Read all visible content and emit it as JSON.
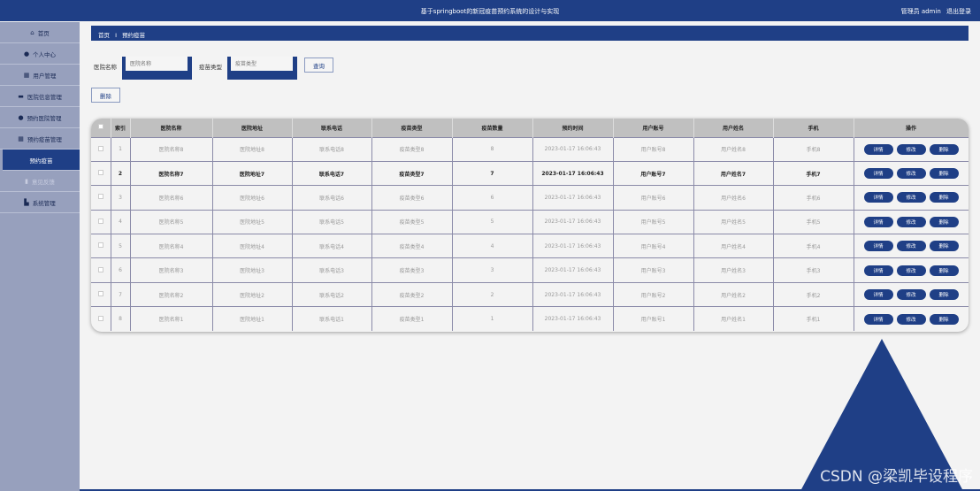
{
  "header": {
    "title": "基于springboot的新冠疫苗预约系统的设计与实现",
    "role": "管理员 admin",
    "logout": "退出登录"
  },
  "sidebar": {
    "items": [
      {
        "label": "首页",
        "icon": "home-icon",
        "glyph": "⌂"
      },
      {
        "label": "个人中心",
        "icon": "user-icon",
        "glyph": "●"
      },
      {
        "label": "用户管理",
        "icon": "grid-icon",
        "glyph": "▦"
      },
      {
        "label": "医院信息管理",
        "icon": "briefcase-icon",
        "glyph": "▬"
      },
      {
        "label": "预约医院管理",
        "icon": "pin-icon",
        "glyph": "●"
      },
      {
        "label": "预约疫苗管理",
        "icon": "grid-icon",
        "glyph": "▦"
      },
      {
        "label": "预约疫苗",
        "icon": "",
        "glyph": ""
      },
      {
        "label": "意见反馈",
        "icon": "clipboard-icon",
        "glyph": "▮"
      },
      {
        "label": "系统管理",
        "icon": "bar-chart-icon",
        "glyph": "▙"
      }
    ]
  },
  "breadcrumb": {
    "home": "首页",
    "sep": "Ⅰ",
    "current": "预约疫苗"
  },
  "search": {
    "hospital_label": "医院名称",
    "hospital_placeholder": "医院名称",
    "vaccine_label": "疫苗类型",
    "vaccine_placeholder": "疫苗类型",
    "query": "查询"
  },
  "toolbar": {
    "delete": "删除"
  },
  "table": {
    "columns": [
      "索引",
      "医院名称",
      "医院地址",
      "联系电话",
      "疫苗类型",
      "疫苗数量",
      "预约时间",
      "用户账号",
      "用户姓名",
      "手机",
      "操作"
    ],
    "actions": {
      "detail": "详情",
      "edit": "修改",
      "delete": "删除"
    },
    "rows": [
      [
        "1",
        "医院名称8",
        "医院地址8",
        "联系电话8",
        "疫苗类型8",
        "8",
        "2023-01-17 16:06:43",
        "用户账号8",
        "用户姓名8",
        "手机8"
      ],
      [
        "2",
        "医院名称7",
        "医院地址7",
        "联系电话7",
        "疫苗类型7",
        "7",
        "2023-01-17 16:06:43",
        "用户账号7",
        "用户姓名7",
        "手机7"
      ],
      [
        "3",
        "医院名称6",
        "医院地址6",
        "联系电话6",
        "疫苗类型6",
        "6",
        "2023-01-17 16:06:43",
        "用户账号6",
        "用户姓名6",
        "手机6"
      ],
      [
        "4",
        "医院名称5",
        "医院地址5",
        "联系电话5",
        "疫苗类型5",
        "5",
        "2023-01-17 16:06:43",
        "用户账号5",
        "用户姓名5",
        "手机5"
      ],
      [
        "5",
        "医院名称4",
        "医院地址4",
        "联系电话4",
        "疫苗类型4",
        "4",
        "2023-01-17 16:06:43",
        "用户账号4",
        "用户姓名4",
        "手机4"
      ],
      [
        "6",
        "医院名称3",
        "医院地址3",
        "联系电话3",
        "疫苗类型3",
        "3",
        "2023-01-17 16:06:43",
        "用户账号3",
        "用户姓名3",
        "手机3"
      ],
      [
        "7",
        "医院名称2",
        "医院地址2",
        "联系电话2",
        "疫苗类型2",
        "2",
        "2023-01-17 16:06:43",
        "用户账号2",
        "用户姓名2",
        "手机2"
      ],
      [
        "8",
        "医院名称1",
        "医院地址1",
        "联系电话1",
        "疫苗类型1",
        "1",
        "2023-01-17 16:06:43",
        "用户账号1",
        "用户姓名1",
        "手机1"
      ]
    ]
  },
  "watermark": "CSDN @梁凯毕设程序",
  "colors": {
    "primary": "#1f3f86",
    "sidebar": "#97a0bd"
  }
}
